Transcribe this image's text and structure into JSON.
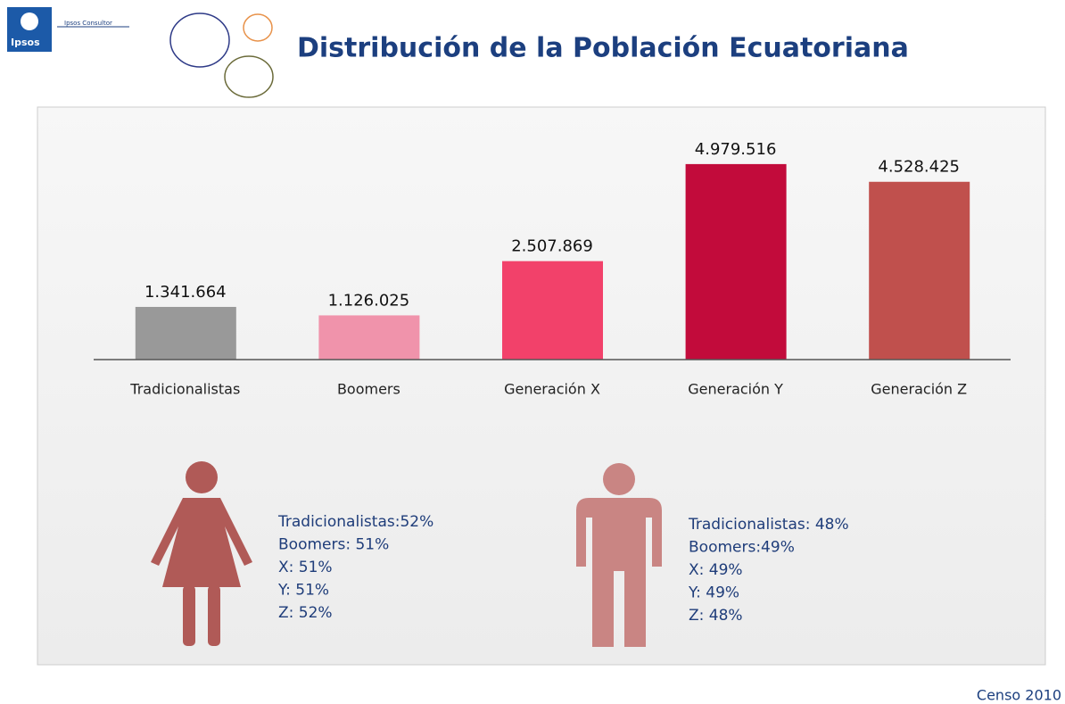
{
  "logo": {
    "brand": "Ipsos",
    "tagline": "Ipsos Consultor"
  },
  "chart_data": {
    "type": "bar",
    "title": "Distribución de la Población Ecuatoriana",
    "categories": [
      "Tradicionalistas",
      "Boomers",
      "Generación X",
      "Generación Y",
      "Generación Z"
    ],
    "values": [
      1341664,
      1126025,
      2507869,
      4979516,
      4528425
    ],
    "value_labels": [
      "1.341.664",
      "1.126.025",
      "2.507.869",
      "4.979.516",
      "4.528.425"
    ],
    "colors": [
      "#999999",
      "#f093ab",
      "#f2416a",
      "#c20b3b",
      "#c0504d"
    ],
    "ylim": [
      0,
      6000000
    ]
  },
  "women": {
    "lines": [
      "Tradicionalistas:52%",
      "Boomers: 51%",
      "X: 51%",
      "Y: 51%",
      "Z: 52%"
    ]
  },
  "men": {
    "lines": [
      "Tradicionalistas: 48%",
      "Boomers:49%",
      "X: 49%",
      "Y: 49%",
      "Z: 48%"
    ]
  },
  "source": "Censo 2010"
}
